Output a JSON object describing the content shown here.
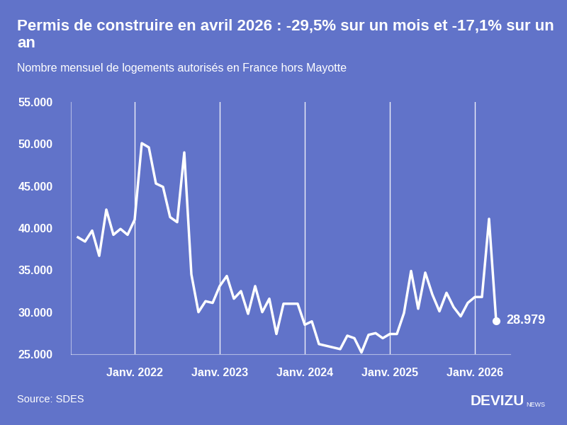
{
  "chart_data": {
    "type": "line",
    "title": "Permis de construire en avril 2026 : -29,5% sur un mois et -17,1% sur un an",
    "subtitle": "Nombre mensuel de logements autorisés en France hors Mayotte",
    "source": "Source: SDES",
    "brand": "DEVIZU",
    "brand_suffix": "NEWS",
    "color": "#ffffff",
    "grid": "x",
    "x": [
      "2021-05",
      "2021-06",
      "2021-07",
      "2021-08",
      "2021-09",
      "2021-10",
      "2021-11",
      "2021-12",
      "2022-01",
      "2022-02",
      "2022-03",
      "2022-04",
      "2022-05",
      "2022-06",
      "2022-07",
      "2022-08",
      "2022-09",
      "2022-10",
      "2022-11",
      "2022-12",
      "2023-01",
      "2023-02",
      "2023-03",
      "2023-04",
      "2023-05",
      "2023-06",
      "2023-07",
      "2023-08",
      "2023-09",
      "2023-10",
      "2023-11",
      "2023-12",
      "2024-01",
      "2024-02",
      "2024-03",
      "2024-04",
      "2024-05",
      "2024-06",
      "2024-07",
      "2024-08",
      "2024-09",
      "2024-10",
      "2024-11",
      "2024-12",
      "2025-01",
      "2025-02",
      "2025-03",
      "2025-04",
      "2025-05",
      "2025-06",
      "2025-07",
      "2025-08",
      "2025-09",
      "2025-10",
      "2025-11",
      "2025-12",
      "2026-01",
      "2026-02",
      "2026-03",
      "2026-04"
    ],
    "values": [
      38900,
      38400,
      39700,
      36700,
      42200,
      39200,
      39900,
      39200,
      41000,
      50100,
      49600,
      45300,
      44900,
      41300,
      40700,
      49000,
      34500,
      30000,
      31300,
      31100,
      33100,
      34300,
      31600,
      32500,
      29800,
      33100,
      30000,
      31600,
      27400,
      31000,
      31000,
      31000,
      28500,
      28900,
      26200,
      26000,
      25800,
      25600,
      27200,
      26900,
      25200,
      27300,
      27500,
      26900,
      27400,
      27400,
      29900,
      34900,
      30400,
      34700,
      32100,
      30100,
      32300,
      30600,
      29500,
      31100,
      31800,
      31800,
      41100,
      28979
    ],
    "xlim": [
      "2021-04",
      "2026-06"
    ],
    "xticks": [
      {
        "value": "2022-01",
        "label": "Janv. 2022"
      },
      {
        "value": "2023-01",
        "label": "Janv. 2023"
      },
      {
        "value": "2024-01",
        "label": "Janv. 2024"
      },
      {
        "value": "2025-01",
        "label": "Janv. 2025"
      },
      {
        "value": "2026-01",
        "label": "Janv. 2026"
      }
    ],
    "ylim": [
      25000,
      55000
    ],
    "yticks": [
      {
        "value": 25000,
        "label": "25.000"
      },
      {
        "value": 30000,
        "label": "30.000"
      },
      {
        "value": 35000,
        "label": "35.000"
      },
      {
        "value": 40000,
        "label": "40.000"
      },
      {
        "value": 45000,
        "label": "45.000"
      },
      {
        "value": 50000,
        "label": "50.000"
      },
      {
        "value": 55000,
        "label": "55.000"
      }
    ],
    "annotations": [
      {
        "x": "2026-04",
        "value": 28979,
        "label": "28.979"
      }
    ]
  }
}
